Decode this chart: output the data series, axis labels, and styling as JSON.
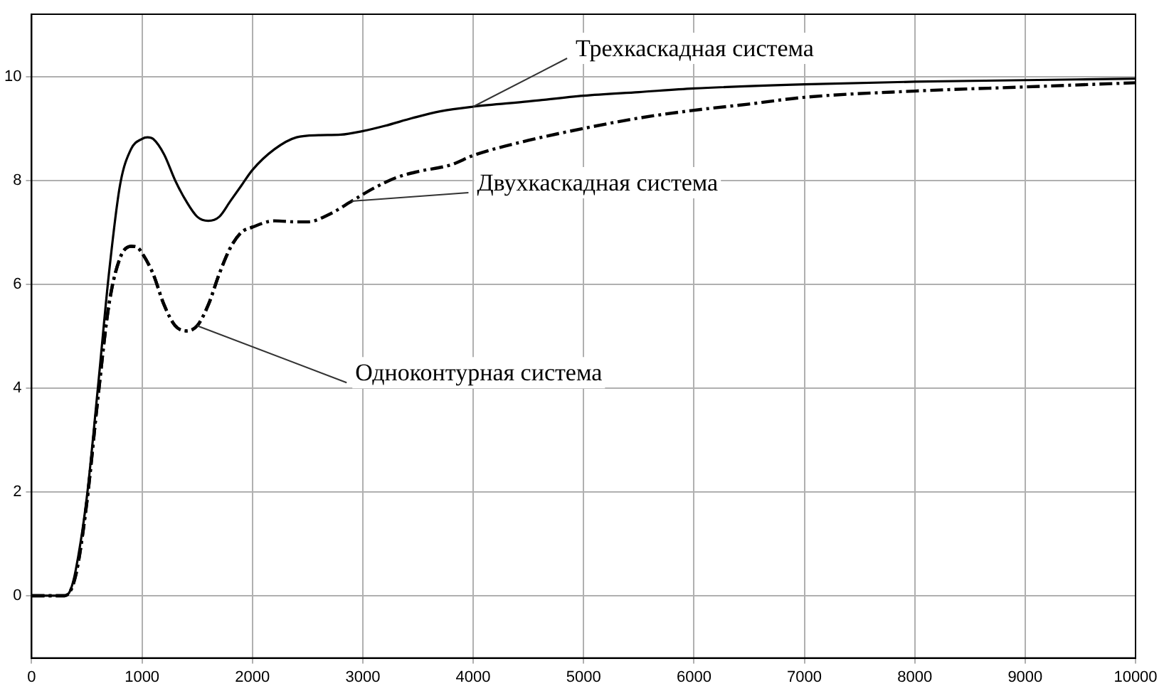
{
  "chart_data": {
    "type": "line",
    "xlim": [
      0,
      10000
    ],
    "ylim": [
      -1.2,
      11.2
    ],
    "xticks": [
      0,
      1000,
      2000,
      3000,
      4000,
      5000,
      6000,
      7000,
      8000,
      9000,
      10000
    ],
    "yticks": [
      0,
      2,
      4,
      6,
      8,
      10
    ],
    "grid": true,
    "legend": false,
    "marker": "none",
    "series": [
      {
        "name": "Трехкаскадная система",
        "color": "#000000",
        "line_style": "solid",
        "x": [
          0,
          300,
          350,
          400,
          500,
          600,
          700,
          800,
          900,
          1000,
          1050,
          1100,
          1200,
          1300,
          1400,
          1500,
          1600,
          1700,
          1800,
          1900,
          2000,
          2200,
          2400,
          2600,
          2800,
          3000,
          3200,
          3450,
          3700,
          4000,
          4500,
          5000,
          5500,
          6000,
          7000,
          8000,
          9000,
          10000
        ],
        "values": [
          0,
          0,
          0.1,
          0.5,
          1.9,
          4.0,
          6.2,
          7.9,
          8.6,
          8.8,
          8.83,
          8.8,
          8.5,
          8.0,
          7.6,
          7.3,
          7.22,
          7.3,
          7.6,
          7.9,
          8.2,
          8.6,
          8.83,
          8.87,
          8.88,
          8.95,
          9.05,
          9.2,
          9.33,
          9.42,
          9.52,
          9.63,
          9.7,
          9.77,
          9.85,
          9.9,
          9.93,
          9.96
        ]
      },
      {
        "name": "Двухкаскадная система",
        "color": "#000000",
        "line_style": "dashed",
        "x": [
          0,
          300,
          400,
          500,
          600,
          700,
          800,
          900,
          950,
          1000,
          1100,
          1200,
          1300,
          1400,
          1500,
          1600,
          1700,
          1800,
          1900,
          2000,
          2200,
          2400,
          2500,
          2700,
          2900,
          3100,
          3300,
          3500,
          3800,
          4000,
          4500,
          5000,
          5500,
          6000,
          6500,
          7000,
          8000,
          9000,
          10000
        ],
        "values": [
          0,
          0,
          0.4,
          1.8,
          3.8,
          5.6,
          6.5,
          6.73,
          6.72,
          6.6,
          6.2,
          5.6,
          5.2,
          5.1,
          5.2,
          5.6,
          6.2,
          6.7,
          7.0,
          7.1,
          7.22,
          7.2,
          7.2,
          7.35,
          7.6,
          7.85,
          8.05,
          8.17,
          8.3,
          8.48,
          8.77,
          9.0,
          9.2,
          9.35,
          9.47,
          9.6,
          9.72,
          9.8,
          9.88
        ]
      },
      {
        "name": "Одноконтурная система",
        "color": "#000000",
        "line_style": "dashed",
        "x": [
          0,
          300,
          400,
          500,
          600,
          700,
          800,
          900,
          950,
          1000,
          1100,
          1200,
          1300,
          1400,
          1500,
          1600,
          1700,
          1800,
          1900,
          2000
        ],
        "values": [
          0,
          0,
          0.4,
          1.8,
          3.8,
          5.6,
          6.5,
          6.73,
          6.72,
          6.6,
          6.2,
          5.6,
          5.2,
          5.1,
          5.2,
          5.6,
          6.2,
          6.7,
          7.0,
          7.1
        ]
      }
    ]
  }
}
